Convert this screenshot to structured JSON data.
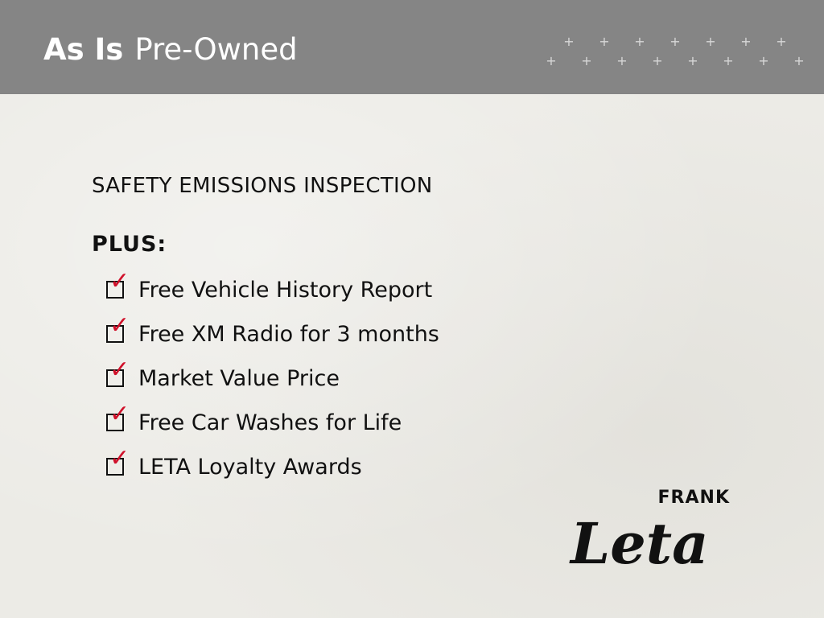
{
  "header": {
    "title_bold": "As Is",
    "title_rest": "Pre-Owned",
    "background": "#858585"
  },
  "main": {
    "heading": "SAFETY EMISSIONS INSPECTION",
    "plus_label": "PLUS:",
    "items": [
      {
        "label": "Free Vehicle History Report",
        "checked": true
      },
      {
        "label": "Free XM Radio for 3 months",
        "checked": true
      },
      {
        "label": "Market Value Price",
        "checked": true
      },
      {
        "label": "Free Car Washes for Life",
        "checked": true
      },
      {
        "label": "LETA Loyalty Awards",
        "checked": true
      }
    ],
    "check_color": "#d0102a",
    "check_glyph": "✓"
  },
  "logo": {
    "top": "FRANK",
    "script": "Leta"
  },
  "decor": {
    "plus_glyph": "+"
  }
}
